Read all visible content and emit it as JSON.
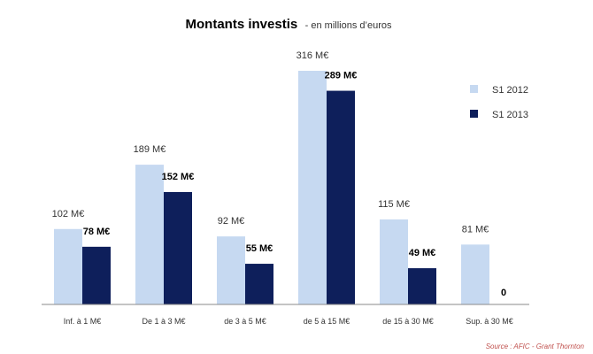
{
  "chart_data": {
    "type": "bar",
    "title": "Montants investis",
    "subtitle": "- en millions d’euros",
    "categories": [
      "Inf. à 1 M€",
      "De 1 à 3 M€",
      "de 3 à 5 M€",
      "de 5 à 15 M€",
      "de 15 à 30 M€",
      "Sup. à 30 M€"
    ],
    "series": [
      {
        "name": "S1 2012",
        "values": [
          102,
          189,
          92,
          316,
          115,
          81
        ],
        "labels": [
          "102 M€",
          "189 M€",
          "92 M€",
          "316 M€",
          "115 M€",
          "81 M€"
        ],
        "color": "#c6d9f1"
      },
      {
        "name": "S1 2013",
        "values": [
          78,
          152,
          55,
          289,
          49,
          0
        ],
        "labels": [
          "78 M€",
          "152 M€",
          "55 M€",
          "289 M€",
          "49 M€",
          "0"
        ],
        "color": "#0e1f5b"
      }
    ],
    "xlabel": "",
    "ylabel": "",
    "ylim": [
      0,
      316
    ],
    "grid": false,
    "legend_position": "right"
  },
  "source": "Source : AFIC - Grant  Thornton"
}
